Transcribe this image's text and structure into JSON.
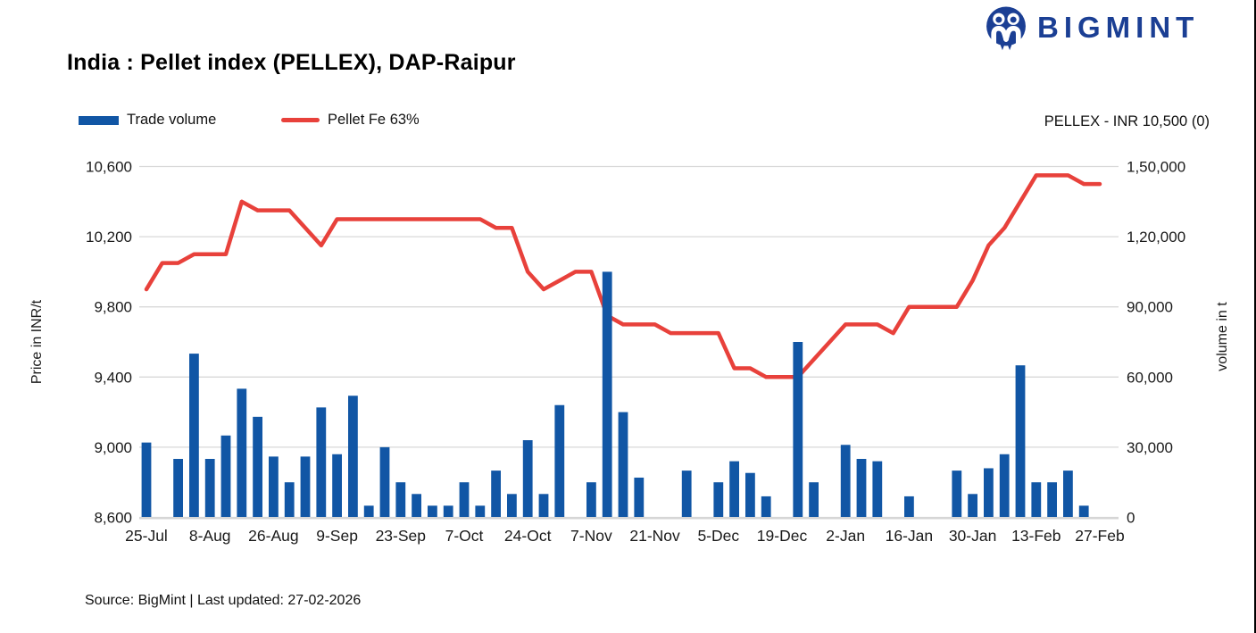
{
  "header": {
    "brand": "BIGMINT",
    "brand_color": "#1b3f94",
    "title": "India : Pellet index (PELLEX), DAP-Raipur",
    "quote": "PELLEX - INR 10,500 (0)"
  },
  "legend": {
    "volume_label": "Trade volume",
    "line_label": "Pellet Fe 63%"
  },
  "footer": {
    "source": "Source: BigMint | Last updated: 27-02-2026"
  },
  "chart_data": {
    "type": "combo",
    "title": "India : Pellet index (PELLEX), DAP-Raipur",
    "n_points": 61,
    "grid": true,
    "legend_position": "top-left",
    "x_tick_labels": [
      "25-Jul",
      "8-Aug",
      "26-Aug",
      "9-Sep",
      "23-Sep",
      "7-Oct",
      "24-Oct",
      "7-Nov",
      "21-Nov",
      "5-Dec",
      "19-Dec",
      "2-Jan",
      "16-Jan",
      "30-Jan",
      "13-Feb",
      "27-Feb"
    ],
    "x_label_every": 4,
    "y_left": {
      "title": "Price in INR/t",
      "min": 8600,
      "max": 10600,
      "tick_labels": [
        "8,600",
        "9,000",
        "9,400",
        "9,800",
        "10,200",
        "10,600"
      ]
    },
    "y_right": {
      "title": "volume in t",
      "min": 0,
      "max": 150000,
      "tick_labels": [
        "0",
        "30,000",
        "60,000",
        "90,000",
        "1,20,000",
        "1,50,000"
      ]
    },
    "series": [
      {
        "name": "Trade volume",
        "type": "bar",
        "axis": "right",
        "color": "#1156a5",
        "values": [
          32000,
          0,
          25000,
          70000,
          25000,
          35000,
          55000,
          43000,
          26000,
          15000,
          26000,
          47000,
          27000,
          52000,
          5000,
          30000,
          15000,
          10000,
          5000,
          5000,
          15000,
          5000,
          20000,
          10000,
          33000,
          10000,
          48000,
          0,
          15000,
          105000,
          45000,
          17000,
          0,
          0,
          20000,
          0,
          15000,
          24000,
          19000,
          9000,
          0,
          75000,
          15000,
          0,
          31000,
          25000,
          24000,
          0,
          9000,
          0,
          0,
          20000,
          10000,
          21000,
          27000,
          65000,
          15000,
          15000,
          20000,
          5000,
          0
        ]
      },
      {
        "name": "Pellet Fe 63%",
        "type": "line",
        "axis": "left",
        "color": "#e8413b",
        "values": [
          9900,
          10050,
          10050,
          10100,
          10100,
          10100,
          10400,
          10350,
          10350,
          10350,
          10250,
          10150,
          10300,
          10300,
          10300,
          10300,
          10300,
          10300,
          10300,
          10300,
          10300,
          10300,
          10250,
          10250,
          10000,
          9900,
          9950,
          10000,
          10000,
          9750,
          9700,
          9700,
          9700,
          9650,
          9650,
          9650,
          9650,
          9450,
          9450,
          9400,
          9400,
          9400,
          9500,
          9600,
          9700,
          9700,
          9700,
          9650,
          9800,
          9800,
          9800,
          9800,
          9950,
          10150,
          10250,
          10400,
          10550,
          10550,
          10550,
          10500,
          10500
        ]
      }
    ],
    "grid_color": "#d9d9d9",
    "axis_line_color": "#d4d4d4",
    "text_color": "#1a1a1a"
  }
}
